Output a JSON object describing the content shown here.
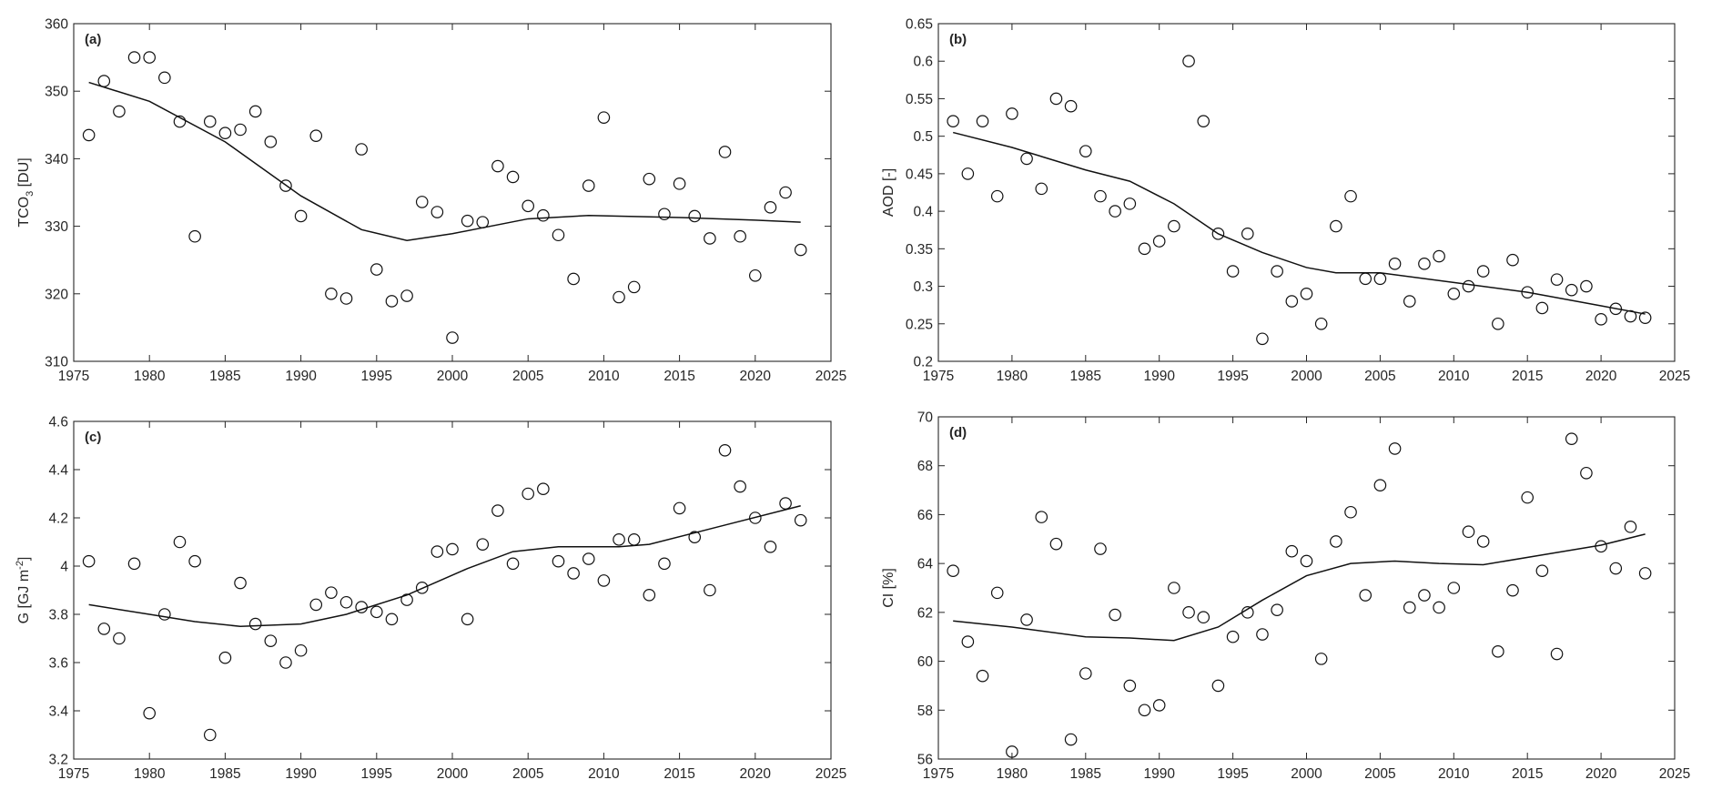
{
  "chart_data": [
    {
      "panel": "(a)",
      "type": "scatter",
      "ylabel": "TCO",
      "ylabel_sub": "3",
      "ylabel_rest": " [DU]",
      "xlim": [
        1975,
        2025
      ],
      "ylim": [
        310,
        360
      ],
      "xticks": [
        1975,
        1980,
        1985,
        1990,
        1995,
        2000,
        2005,
        2010,
        2015,
        2020,
        2025
      ],
      "yticks": [
        310,
        320,
        330,
        340,
        350,
        360
      ],
      "ytick_labels": [
        "310",
        "320",
        "330",
        "340",
        "350",
        "360"
      ],
      "grid": false,
      "x": [
        1976,
        1977,
        1978,
        1979,
        1980,
        1981,
        1982,
        1983,
        1984,
        1985,
        1986,
        1987,
        1988,
        1989,
        1990,
        1991,
        1992,
        1993,
        1994,
        1995,
        1996,
        1997,
        1998,
        1999,
        2000,
        2001,
        2002,
        2003,
        2004,
        2005,
        2006,
        2007,
        2008,
        2009,
        2010,
        2011,
        2012,
        2013,
        2014,
        2015,
        2016,
        2017,
        2018,
        2019,
        2020,
        2021,
        2022,
        2023
      ],
      "y": [
        343.5,
        351.5,
        347,
        355,
        355,
        352,
        345.5,
        328.5,
        345.5,
        343.8,
        344.3,
        347,
        342.5,
        336,
        331.5,
        343.4,
        320,
        319.3,
        341.4,
        323.6,
        318.9,
        319.7,
        333.6,
        332.1,
        313.5,
        330.8,
        330.6,
        338.9,
        337.3,
        333,
        331.6,
        328.7,
        322.2,
        336,
        346.1,
        319.5,
        321,
        337,
        331.8,
        336.3,
        331.5,
        328.2,
        341,
        328.5,
        322.7,
        332.8,
        335,
        326.5
      ],
      "trend": [
        [
          1976,
          351.3
        ],
        [
          1980,
          348.5
        ],
        [
          1985,
          342.5
        ],
        [
          1990,
          334.5
        ],
        [
          1994,
          329.5
        ],
        [
          1997,
          327.9
        ],
        [
          2000,
          328.9
        ],
        [
          2005,
          331.1
        ],
        [
          2009,
          331.6
        ],
        [
          2015,
          331.3
        ],
        [
          2020,
          330.9
        ],
        [
          2023,
          330.6
        ]
      ]
    },
    {
      "panel": "(b)",
      "type": "scatter",
      "ylabel": "AOD [-]",
      "xlim": [
        1975,
        2025
      ],
      "ylim": [
        0.2,
        0.65
      ],
      "xticks": [
        1975,
        1980,
        1985,
        1990,
        1995,
        2000,
        2005,
        2010,
        2015,
        2020,
        2025
      ],
      "yticks": [
        0.2,
        0.25,
        0.3,
        0.35,
        0.4,
        0.45,
        0.5,
        0.55,
        0.6,
        0.65
      ],
      "ytick_labels": [
        "0.2",
        "0.25",
        "0.3",
        "0.35",
        "0.4",
        "0.45",
        "0.5",
        "0.55",
        "0.6",
        "0.65"
      ],
      "grid": false,
      "x": [
        1976,
        1977,
        1978,
        1979,
        1980,
        1981,
        1982,
        1983,
        1984,
        1985,
        1986,
        1987,
        1988,
        1989,
        1990,
        1991,
        1992,
        1993,
        1994,
        1995,
        1996,
        1997,
        1998,
        1999,
        2000,
        2001,
        2002,
        2003,
        2004,
        2005,
        2006,
        2007,
        2008,
        2009,
        2010,
        2011,
        2012,
        2013,
        2014,
        2015,
        2016,
        2017,
        2018,
        2019,
        2020,
        2021,
        2022,
        2023
      ],
      "y": [
        0.52,
        0.45,
        0.52,
        0.42,
        0.53,
        0.47,
        0.43,
        0.55,
        0.54,
        0.48,
        0.42,
        0.4,
        0.41,
        0.35,
        0.36,
        0.38,
        0.6,
        0.52,
        0.37,
        0.32,
        0.37,
        0.23,
        0.32,
        0.28,
        0.29,
        0.25,
        0.38,
        0.42,
        0.31,
        0.31,
        0.33,
        0.28,
        0.33,
        0.34,
        0.29,
        0.3,
        0.32,
        0.25,
        0.335,
        0.292,
        0.271,
        0.309,
        0.295,
        0.3,
        0.256,
        0.27,
        0.26,
        0.258
      ],
      "trend": [
        [
          1976,
          0.505
        ],
        [
          1980,
          0.485
        ],
        [
          1985,
          0.455
        ],
        [
          1988,
          0.44
        ],
        [
          1991,
          0.41
        ],
        [
          1994,
          0.37
        ],
        [
          1997,
          0.345
        ],
        [
          2000,
          0.325
        ],
        [
          2002,
          0.318
        ],
        [
          2005,
          0.318
        ],
        [
          2010,
          0.305
        ],
        [
          2015,
          0.292
        ],
        [
          2020,
          0.274
        ],
        [
          2023,
          0.263
        ]
      ]
    },
    {
      "panel": "(c)",
      "type": "scatter",
      "ylabel": "G [GJ m",
      "ylabel_sup": "-2",
      "ylabel_rest": "]",
      "xlim": [
        1975,
        2025
      ],
      "ylim": [
        3.2,
        4.6
      ],
      "xticks": [
        1975,
        1980,
        1985,
        1990,
        1995,
        2000,
        2005,
        2010,
        2015,
        2020,
        2025
      ],
      "yticks": [
        3.2,
        3.4,
        3.6,
        3.8,
        4.0,
        4.2,
        4.4,
        4.6
      ],
      "ytick_labels": [
        "3.2",
        "3.4",
        "3.6",
        "3.8",
        "4",
        "4.2",
        "4.4",
        "4.6"
      ],
      "grid": false,
      "x": [
        1976,
        1977,
        1978,
        1979,
        1980,
        1981,
        1982,
        1983,
        1984,
        1985,
        1986,
        1987,
        1988,
        1989,
        1990,
        1991,
        1992,
        1993,
        1994,
        1995,
        1996,
        1997,
        1998,
        1999,
        2000,
        2001,
        2002,
        2003,
        2004,
        2005,
        2006,
        2007,
        2008,
        2009,
        2010,
        2011,
        2012,
        2013,
        2014,
        2015,
        2016,
        2017,
        2018,
        2019,
        2020,
        2021,
        2022,
        2023
      ],
      "y": [
        4.02,
        3.74,
        3.7,
        4.01,
        3.39,
        3.8,
        4.1,
        4.02,
        3.3,
        3.62,
        3.93,
        3.76,
        3.69,
        3.6,
        3.65,
        3.84,
        3.89,
        3.85,
        3.83,
        3.81,
        3.78,
        3.86,
        3.91,
        4.06,
        4.07,
        3.78,
        4.09,
        4.23,
        4.01,
        4.3,
        4.32,
        4.02,
        3.97,
        4.03,
        3.94,
        4.11,
        4.11,
        3.88,
        4.01,
        4.24,
        4.12,
        3.9,
        4.48,
        4.33,
        4.2,
        4.08,
        4.26,
        4.19
      ],
      "trend": [
        [
          1976,
          3.84
        ],
        [
          1980,
          3.8
        ],
        [
          1983,
          3.77
        ],
        [
          1986,
          3.75
        ],
        [
          1990,
          3.76
        ],
        [
          1993,
          3.8
        ],
        [
          1997,
          3.88
        ],
        [
          2001,
          3.99
        ],
        [
          2004,
          4.06
        ],
        [
          2007,
          4.08
        ],
        [
          2011,
          4.08
        ],
        [
          2013,
          4.09
        ],
        [
          2018,
          4.17
        ],
        [
          2023,
          4.25
        ]
      ]
    },
    {
      "panel": "(d)",
      "type": "scatter",
      "ylabel": "CI [%]",
      "xlim": [
        1975,
        2025
      ],
      "ylim": [
        56,
        70
      ],
      "xticks": [
        1975,
        1980,
        1985,
        1990,
        1995,
        2000,
        2005,
        2010,
        2015,
        2020,
        2025
      ],
      "yticks": [
        56,
        58,
        60,
        62,
        64,
        66,
        68,
        70
      ],
      "ytick_labels": [
        "56",
        "58",
        "60",
        "62",
        "64",
        "66",
        "68",
        "70"
      ],
      "grid": false,
      "x": [
        1976,
        1977,
        1978,
        1979,
        1980,
        1981,
        1982,
        1983,
        1984,
        1985,
        1986,
        1987,
        1988,
        1989,
        1990,
        1991,
        1992,
        1993,
        1994,
        1995,
        1996,
        1997,
        1998,
        1999,
        2000,
        2001,
        2002,
        2003,
        2004,
        2005,
        2006,
        2007,
        2008,
        2009,
        2010,
        2011,
        2012,
        2013,
        2014,
        2015,
        2016,
        2017,
        2018,
        2019,
        2020,
        2021,
        2022,
        2023
      ],
      "y": [
        63.7,
        60.8,
        59.4,
        62.8,
        56.3,
        61.7,
        65.9,
        64.8,
        56.8,
        59.5,
        64.6,
        61.9,
        59,
        58,
        58.2,
        63,
        62,
        61.8,
        59,
        61,
        62,
        61.1,
        62.1,
        64.5,
        64.1,
        60.1,
        64.9,
        66.1,
        62.7,
        67.2,
        68.7,
        62.2,
        62.7,
        62.2,
        63,
        65.3,
        64.9,
        60.4,
        62.9,
        66.7,
        63.7,
        60.3,
        69.1,
        67.7,
        64.7,
        63.8,
        65.5,
        63.6
      ],
      "trend": [
        [
          1976,
          61.65
        ],
        [
          1980,
          61.4
        ],
        [
          1985,
          61.0
        ],
        [
          1988,
          60.95
        ],
        [
          1991,
          60.85
        ],
        [
          1994,
          61.4
        ],
        [
          1997,
          62.5
        ],
        [
          2000,
          63.5
        ],
        [
          2003,
          64.0
        ],
        [
          2006,
          64.1
        ],
        [
          2009,
          64.0
        ],
        [
          2012,
          63.95
        ],
        [
          2016,
          64.35
        ],
        [
          2020,
          64.75
        ],
        [
          2023,
          65.2
        ]
      ]
    }
  ]
}
